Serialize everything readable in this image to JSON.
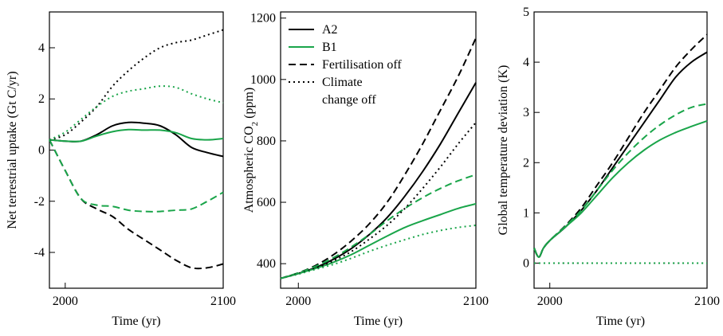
{
  "colors": {
    "A2": "#000000",
    "B1": "#1aa54a"
  },
  "legend": {
    "entries": [
      {
        "label": "A2",
        "style": "solid",
        "color": "#000000"
      },
      {
        "label": "B1",
        "style": "solid",
        "color": "#1aa54a"
      },
      {
        "label": "Fertilisation off",
        "style": "dashed",
        "color": "#000000"
      },
      {
        "label": "Climate",
        "style": "dotted",
        "color": "#000000"
      },
      {
        "label": "change off",
        "style": "none",
        "color": "#000000"
      }
    ]
  },
  "chart_data": [
    {
      "type": "line",
      "title": "",
      "xlabel": "Time (yr)",
      "ylabel": "Net terrestrial uptake (Gt C/yr)",
      "xlim": [
        1990,
        2100
      ],
      "ylim": [
        -5.4,
        5.4
      ],
      "xticks": [
        2000,
        2100
      ],
      "yticks": [
        -4,
        -2,
        0,
        2,
        4
      ],
      "series": [
        {
          "scenario": "A2",
          "style": "solid",
          "x": [
            1990,
            2000,
            2010,
            2020,
            2030,
            2040,
            2050,
            2060,
            2070,
            2080,
            2090,
            2100
          ],
          "y": [
            0.4,
            0.35,
            0.35,
            0.6,
            0.95,
            1.08,
            1.05,
            0.95,
            0.6,
            0.1,
            -0.1,
            -0.25
          ]
        },
        {
          "scenario": "B1",
          "style": "solid",
          "x": [
            1990,
            2000,
            2010,
            2020,
            2030,
            2040,
            2050,
            2060,
            2070,
            2080,
            2090,
            2100
          ],
          "y": [
            0.4,
            0.35,
            0.35,
            0.55,
            0.72,
            0.8,
            0.78,
            0.78,
            0.68,
            0.45,
            0.4,
            0.45
          ]
        },
        {
          "scenario": "A2",
          "style": "dashed",
          "x": [
            1990,
            2000,
            2010,
            2020,
            2030,
            2040,
            2050,
            2060,
            2070,
            2080,
            2090,
            2100
          ],
          "y": [
            0.4,
            -0.8,
            -1.9,
            -2.3,
            -2.6,
            -3.1,
            -3.5,
            -3.9,
            -4.3,
            -4.6,
            -4.6,
            -4.45
          ]
        },
        {
          "scenario": "B1",
          "style": "dashed",
          "x": [
            1990,
            2000,
            2010,
            2020,
            2030,
            2040,
            2050,
            2060,
            2070,
            2080,
            2090,
            2100
          ],
          "y": [
            0.4,
            -0.8,
            -1.9,
            -2.15,
            -2.2,
            -2.35,
            -2.4,
            -2.4,
            -2.35,
            -2.3,
            -2.0,
            -1.65
          ]
        },
        {
          "scenario": "A2",
          "style": "dotted",
          "x": [
            1990,
            2000,
            2010,
            2020,
            2030,
            2040,
            2050,
            2060,
            2070,
            2080,
            2090,
            2100
          ],
          "y": [
            0.4,
            0.6,
            1.1,
            1.7,
            2.5,
            3.1,
            3.6,
            4.0,
            4.2,
            4.3,
            4.5,
            4.7
          ]
        },
        {
          "scenario": "B1",
          "style": "dotted",
          "x": [
            1990,
            2000,
            2010,
            2020,
            2030,
            2040,
            2050,
            2060,
            2070,
            2080,
            2090,
            2100
          ],
          "y": [
            0.4,
            0.7,
            1.2,
            1.7,
            2.1,
            2.3,
            2.4,
            2.5,
            2.45,
            2.2,
            2.0,
            1.85
          ]
        }
      ]
    },
    {
      "type": "line",
      "title": "",
      "xlabel": "Time (yr)",
      "ylabel": "Atmospheric CO2 (ppm)",
      "ylabel_parts": {
        "before": "Atmospheric CO",
        "sub": "2",
        "after": " (ppm)"
      },
      "xlim": [
        1990,
        2100
      ],
      "ylim": [
        320,
        1220
      ],
      "xticks": [
        2000,
        2100
      ],
      "yticks": [
        400,
        600,
        800,
        1000,
        1200
      ],
      "series": [
        {
          "scenario": "A2",
          "style": "solid",
          "x": [
            1990,
            2000,
            2010,
            2020,
            2030,
            2040,
            2050,
            2060,
            2070,
            2080,
            2090,
            2100
          ],
          "y": [
            352,
            368,
            388,
            415,
            450,
            495,
            550,
            620,
            700,
            790,
            890,
            990
          ]
        },
        {
          "scenario": "B1",
          "style": "solid",
          "x": [
            1990,
            2000,
            2010,
            2020,
            2030,
            2040,
            2050,
            2060,
            2070,
            2080,
            2090,
            2100
          ],
          "y": [
            352,
            368,
            385,
            405,
            430,
            460,
            490,
            518,
            540,
            560,
            580,
            595
          ]
        },
        {
          "scenario": "A2",
          "style": "dashed",
          "x": [
            1990,
            2000,
            2010,
            2020,
            2030,
            2040,
            2050,
            2060,
            2070,
            2080,
            2090,
            2100
          ],
          "y": [
            352,
            370,
            395,
            430,
            475,
            530,
            600,
            690,
            790,
            900,
            1010,
            1135
          ]
        },
        {
          "scenario": "B1",
          "style": "dashed",
          "x": [
            1990,
            2000,
            2010,
            2020,
            2030,
            2040,
            2050,
            2060,
            2070,
            2080,
            2090,
            2100
          ],
          "y": [
            352,
            370,
            392,
            420,
            455,
            495,
            540,
            580,
            615,
            645,
            670,
            690
          ]
        },
        {
          "scenario": "A2",
          "style": "dotted",
          "x": [
            1990,
            2000,
            2010,
            2020,
            2030,
            2040,
            2050,
            2060,
            2070,
            2080,
            2090,
            2100
          ],
          "y": [
            352,
            368,
            386,
            410,
            440,
            480,
            525,
            580,
            645,
            715,
            790,
            860
          ]
        },
        {
          "scenario": "B1",
          "style": "dotted",
          "x": [
            1990,
            2000,
            2010,
            2020,
            2030,
            2040,
            2050,
            2060,
            2070,
            2080,
            2090,
            2100
          ],
          "y": [
            352,
            366,
            382,
            398,
            418,
            440,
            460,
            478,
            495,
            508,
            518,
            525
          ]
        }
      ]
    },
    {
      "type": "line",
      "title": "",
      "xlabel": "Time (yr)",
      "ylabel": "Global temperature deviation (K)",
      "xlim": [
        1990,
        2100
      ],
      "ylim": [
        -0.5,
        5
      ],
      "xticks": [
        2000,
        2100
      ],
      "yticks": [
        0,
        1,
        2,
        3,
        4,
        5
      ],
      "series": [
        {
          "scenario": "A2",
          "style": "solid",
          "x": [
            1990,
            1993,
            1996,
            2000,
            2010,
            2020,
            2030,
            2040,
            2050,
            2060,
            2070,
            2080,
            2090,
            2100
          ],
          "y": [
            0.3,
            0.12,
            0.3,
            0.45,
            0.72,
            1.05,
            1.45,
            1.9,
            2.35,
            2.8,
            3.25,
            3.7,
            4.0,
            4.2
          ]
        },
        {
          "scenario": "B1",
          "style": "solid",
          "x": [
            1990,
            1993,
            1996,
            2000,
            2010,
            2020,
            2030,
            2040,
            2050,
            2060,
            2070,
            2080,
            2090,
            2100
          ],
          "y": [
            0.3,
            0.12,
            0.3,
            0.45,
            0.72,
            1.0,
            1.35,
            1.7,
            2.0,
            2.25,
            2.45,
            2.6,
            2.72,
            2.83
          ]
        },
        {
          "scenario": "A2",
          "style": "dashed",
          "x": [
            1990,
            1993,
            1996,
            2000,
            2010,
            2020,
            2030,
            2040,
            2050,
            2060,
            2070,
            2080,
            2090,
            2100
          ],
          "y": [
            0.3,
            0.12,
            0.3,
            0.45,
            0.75,
            1.1,
            1.55,
            2.0,
            2.5,
            3.0,
            3.45,
            3.9,
            4.25,
            4.55
          ]
        },
        {
          "scenario": "B1",
          "style": "dashed",
          "x": [
            1990,
            1993,
            1996,
            2000,
            2010,
            2020,
            2030,
            2040,
            2050,
            2060,
            2070,
            2080,
            2090,
            2100
          ],
          "y": [
            0.3,
            0.12,
            0.3,
            0.45,
            0.74,
            1.05,
            1.45,
            1.85,
            2.2,
            2.5,
            2.75,
            2.95,
            3.1,
            3.17
          ]
        },
        {
          "scenario": "A2",
          "style": "dotted",
          "x": [
            1990,
            2100
          ],
          "y": [
            0,
            0
          ]
        },
        {
          "scenario": "B1",
          "style": "dotted",
          "x": [
            1990,
            2100
          ],
          "y": [
            0,
            0
          ]
        }
      ]
    }
  ]
}
